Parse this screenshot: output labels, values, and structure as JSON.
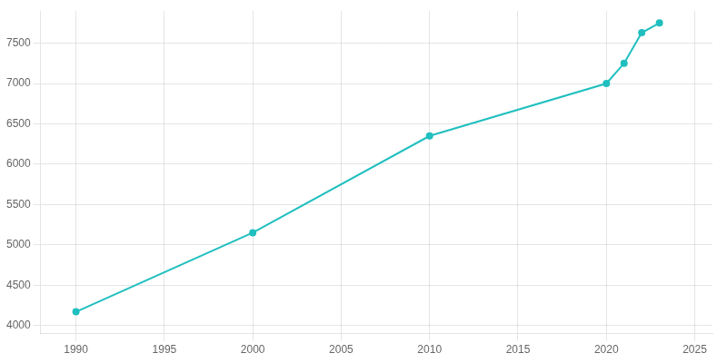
{
  "chart_data": {
    "type": "line",
    "x": [
      1990,
      2000,
      2010,
      2020,
      2021,
      2022,
      2023
    ],
    "values": [
      4170,
      5150,
      6350,
      7000,
      7250,
      7630,
      7750
    ],
    "color": "#20BFBF",
    "marker": "circle",
    "xlim": [
      1988,
      2026
    ],
    "ylim": [
      3900,
      7900
    ],
    "xticks": [
      1990,
      1995,
      2000,
      2005,
      2010,
      2015,
      2020,
      2025
    ],
    "yticks": [
      4000,
      4500,
      5000,
      5500,
      6000,
      6500,
      7000,
      7500
    ],
    "grid": true
  }
}
